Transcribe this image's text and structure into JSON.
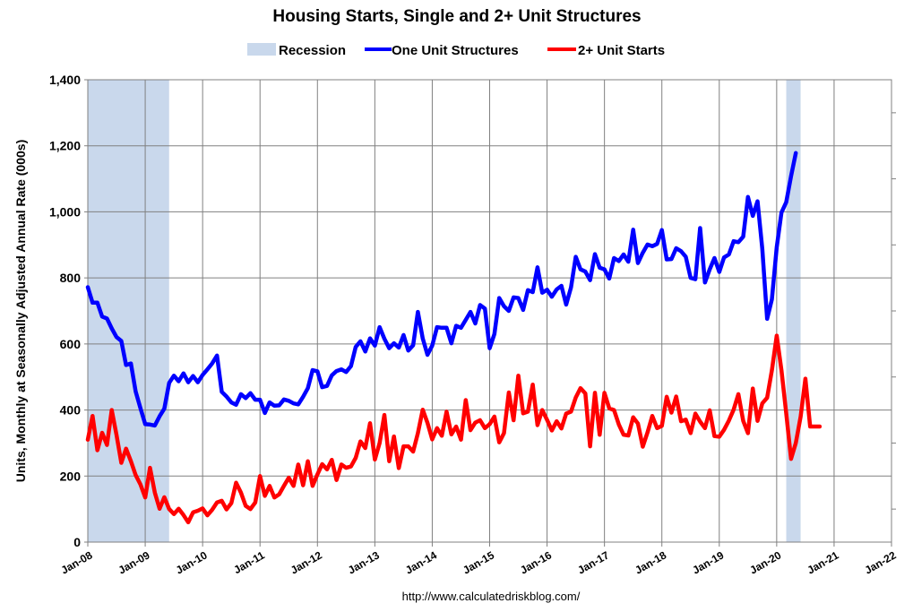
{
  "chart_data": {
    "type": "line",
    "title": "Housing Starts, Single and 2+ Unit Structures",
    "xlabel": "",
    "ylabel": "Units, Monthly at Seasonally Adjusted Annual Rate (000s)",
    "source": "http://www.calculatedriskblog.com/",
    "x_range": [
      "2008-01",
      "2022-01"
    ],
    "ylim": [
      0,
      1400
    ],
    "y_ticks": [
      0,
      200,
      400,
      600,
      800,
      1000,
      1200,
      1400
    ],
    "y_tick_labels": [
      "0",
      "200",
      "400",
      "600",
      "800",
      "1,000",
      "1,200",
      "1,400"
    ],
    "x_tick_labels": [
      "Jan-08",
      "Jan-09",
      "Jan-10",
      "Jan-11",
      "Jan-12",
      "Jan-13",
      "Jan-14",
      "Jan-15",
      "Jan-16",
      "Jan-17",
      "Jan-18",
      "Jan-19",
      "Jan-20",
      "Jan-21",
      "Jan-22"
    ],
    "grid": true,
    "legend_position": "top",
    "recession_label": "Recession",
    "recession_color": "#c9d8ec",
    "recessions": [
      {
        "start": "2008-01",
        "end": "2009-06"
      },
      {
        "start": "2020-03",
        "end": "2020-06"
      }
    ],
    "series": [
      {
        "name": "One Unit Structures",
        "color": "#0000ff",
        "x_start": "2008-01",
        "values": [
          772,
          725,
          725,
          683,
          677,
          647,
          621,
          609,
          536,
          541,
          456,
          406,
          357,
          356,
          353,
          381,
          404,
          482,
          504,
          487,
          511,
          484,
          503,
          484,
          506,
          523,
          541,
          565,
          455,
          441,
          423,
          416,
          448,
          436,
          451,
          431,
          431,
          391,
          423,
          413,
          414,
          432,
          428,
          420,
          417,
          440,
          466,
          521,
          517,
          469,
          473,
          505,
          518,
          523,
          515,
          533,
          591,
          608,
          577,
          617,
          595,
          651,
          616,
          587,
          602,
          589,
          627,
          580,
          596,
          697,
          617,
          567,
          595,
          651,
          649,
          649,
          602,
          655,
          649,
          673,
          697,
          662,
          718,
          707,
          587,
          630,
          739,
          714,
          700,
          741,
          739,
          703,
          763,
          757,
          832,
          755,
          764,
          743,
          765,
          776,
          719,
          771,
          864,
          826,
          819,
          793,
          872,
          831,
          826,
          798,
          860,
          851,
          871,
          849,
          946,
          845,
          876,
          901,
          896,
          903,
          945,
          856,
          857,
          890,
          881,
          864,
          800,
          796,
          951,
          786,
          826,
          860,
          818,
          862,
          871,
          911,
          908,
          925,
          1045,
          988,
          1032,
          888,
          676,
          735,
          893,
          998,
          1029,
          1108,
          1178
        ]
      },
      {
        "name": "2+ Unit Starts",
        "color": "#ff0000",
        "x_start": "2008-01",
        "values": [
          310,
          382,
          278,
          331,
          294,
          400,
          325,
          240,
          283,
          245,
          203,
          175,
          135,
          225,
          150,
          101,
          136,
          100,
          85,
          101,
          82,
          60,
          90,
          95,
          102,
          81,
          98,
          120,
          125,
          99,
          118,
          180,
          150,
          110,
          100,
          120,
          200,
          140,
          170,
          135,
          145,
          170,
          195,
          170,
          235,
          172,
          245,
          170,
          205,
          236,
          220,
          249,
          188,
          235,
          225,
          229,
          255,
          305,
          285,
          360,
          250,
          300,
          385,
          245,
          320,
          224,
          290,
          290,
          274,
          330,
          401,
          361,
          311,
          345,
          322,
          395,
          326,
          350,
          310,
          430,
          339,
          362,
          369,
          345,
          357,
          380,
          302,
          330,
          453,
          369,
          504,
          390,
          395,
          477,
          354,
          400,
          370,
          338,
          366,
          344,
          389,
          395,
          438,
          466,
          450,
          290,
          452,
          325,
          452,
          405,
          400,
          356,
          325,
          323,
          378,
          359,
          289,
          332,
          382,
          345,
          352,
          440,
          392,
          441,
          366,
          371,
          330,
          389,
          365,
          345,
          399,
          321,
          319,
          340,
          368,
          401,
          448,
          367,
          330,
          465,
          367,
          420,
          437,
          520,
          625,
          520,
          390,
          252,
          300,
          380,
          495,
          350,
          350,
          350
        ]
      }
    ]
  }
}
